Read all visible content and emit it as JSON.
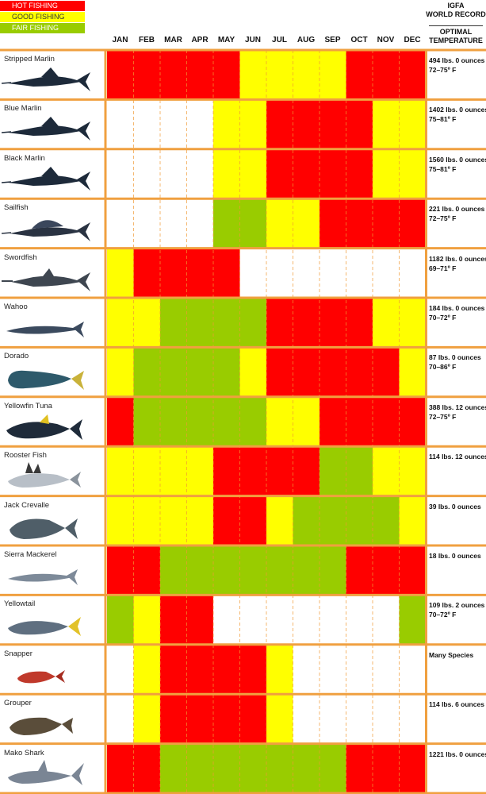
{
  "legend": {
    "hot": "HOT FISHING",
    "good": "GOOD FISHING",
    "fair": "FAIR FISHING"
  },
  "colors": {
    "hot": "#ff0000",
    "good": "#ffff00",
    "fair": "#99cc00",
    "none": "#ffffff",
    "border": "#f0a040",
    "divider": "#f29933"
  },
  "headers": {
    "record_line1": "IGFA",
    "record_line2": "WORLD RECORD",
    "temp_line1": "OPTIMAL",
    "temp_line2": "TEMPERATURE"
  },
  "chart_data": {
    "type": "heatmap",
    "months": [
      "JAN",
      "FEB",
      "MAR",
      "APR",
      "MAY",
      "JUN",
      "JUL",
      "AUG",
      "SEP",
      "OCT",
      "NOV",
      "DEC"
    ],
    "levels": {
      "H": "hot fishing",
      "G": "good fishing",
      "F": "fair fishing",
      "N": "none"
    },
    "species": [
      {
        "name": "Stripped Marlin",
        "months": [
          "H",
          "H",
          "H",
          "H",
          "H",
          "G",
          "G",
          "G",
          "G",
          "H",
          "H",
          "H"
        ],
        "record": "494 lbs. 0 ounces",
        "temp": "72–75º F",
        "icon": "marlin-icon"
      },
      {
        "name": "Blue Marlin",
        "months": [
          "N",
          "N",
          "N",
          "N",
          "G",
          "G",
          "H",
          "H",
          "H",
          "H",
          "G",
          "G"
        ],
        "record": "1402 lbs. 0 ounces",
        "temp": "75–81º F",
        "icon": "marlin-icon"
      },
      {
        "name": "Black Marlin",
        "months": [
          "N",
          "N",
          "N",
          "N",
          "G",
          "G",
          "H",
          "H",
          "H",
          "H",
          "G",
          "G"
        ],
        "record": "1560 lbs. 0 ounces",
        "temp": "75–81º F",
        "icon": "marlin-icon"
      },
      {
        "name": "Sailfish",
        "months": [
          "N",
          "N",
          "N",
          "N",
          "F",
          "F",
          "G",
          "G",
          "H",
          "H",
          "H",
          "H"
        ],
        "record": "221 lbs. 0 ounces",
        "temp": "72–75º F",
        "icon": "sailfish-icon"
      },
      {
        "name": "Swordfish",
        "months": [
          "G",
          "H",
          "H",
          "H",
          "H",
          "N",
          "N",
          "N",
          "N",
          "N",
          "N",
          "N"
        ],
        "record": "1182 lbs. 0 ounces",
        "temp": "69–71º F",
        "icon": "swordfish-icon"
      },
      {
        "name": "Wahoo",
        "months": [
          "G",
          "G",
          "F",
          "F",
          "F",
          "F",
          "H",
          "H",
          "H",
          "H",
          "G",
          "G"
        ],
        "record": "184 lbs. 0 ounces",
        "temp": "70–72º F",
        "icon": "wahoo-icon"
      },
      {
        "name": "Dorado",
        "months": [
          "G",
          "F",
          "F",
          "F",
          "F",
          "G",
          "H",
          "H",
          "H",
          "H",
          "H",
          "G"
        ],
        "record": "87 lbs. 0 ounces",
        "temp": "70–86º F",
        "icon": "dorado-icon"
      },
      {
        "name": "Yellowfin Tuna",
        "months": [
          "H",
          "F",
          "F",
          "F",
          "F",
          "F",
          "G",
          "G",
          "H",
          "H",
          "H",
          "H"
        ],
        "record": "388 lbs. 12 ounces",
        "temp": "72–75º F",
        "icon": "tuna-icon"
      },
      {
        "name": "Rooster Fish",
        "months": [
          "G",
          "G",
          "G",
          "G",
          "H",
          "H",
          "H",
          "H",
          "F",
          "F",
          "G",
          "G"
        ],
        "record": "114 lbs. 12 ounces",
        "temp": "",
        "icon": "roosterfish-icon"
      },
      {
        "name": "Jack Crevalle",
        "months": [
          "G",
          "G",
          "G",
          "G",
          "H",
          "H",
          "G",
          "F",
          "F",
          "F",
          "F",
          "G"
        ],
        "record": "39 lbs. 0 ounces",
        "temp": "",
        "icon": "jack-icon"
      },
      {
        "name": "Sierra Mackerel",
        "months": [
          "H",
          "H",
          "F",
          "F",
          "F",
          "F",
          "F",
          "F",
          "F",
          "H",
          "H",
          "H"
        ],
        "record": "18 lbs. 0 ounces",
        "temp": "",
        "icon": "mackerel-icon"
      },
      {
        "name": "Yellowtail",
        "months": [
          "F",
          "G",
          "H",
          "H",
          "N",
          "N",
          "N",
          "N",
          "N",
          "N",
          "N",
          "F"
        ],
        "record": "109 lbs. 2 ounces",
        "temp": "70–72º F",
        "icon": "yellowtail-icon"
      },
      {
        "name": "Snapper",
        "months": [
          "N",
          "G",
          "H",
          "H",
          "H",
          "H",
          "G",
          "N",
          "N",
          "N",
          "N",
          "N"
        ],
        "record": "Many Species",
        "temp": "",
        "icon": "snapper-icon"
      },
      {
        "name": "Grouper",
        "months": [
          "N",
          "G",
          "H",
          "H",
          "H",
          "H",
          "G",
          "N",
          "N",
          "N",
          "N",
          "N"
        ],
        "record": "114 lbs. 6 ounces",
        "temp": "",
        "icon": "grouper-icon"
      },
      {
        "name": "Mako Shark",
        "months": [
          "H",
          "H",
          "F",
          "F",
          "F",
          "F",
          "F",
          "F",
          "F",
          "H",
          "H",
          "H"
        ],
        "record": "1221 lbs. 0 ounces",
        "temp": "",
        "icon": "shark-icon"
      }
    ]
  }
}
